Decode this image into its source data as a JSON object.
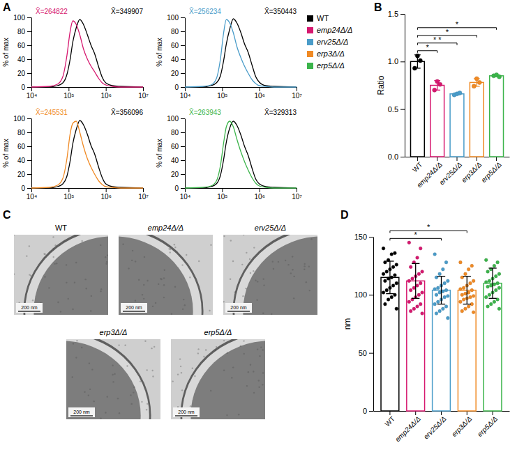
{
  "chart_data": [
    {
      "type": "line",
      "panel": "A",
      "legend": "right",
      "log": "x",
      "ylabel": "% of max",
      "x": [
        10000,
        30000,
        50000,
        70000,
        90000,
        110000,
        130000,
        160000,
        200000,
        250000,
        320000,
        400000,
        500000,
        650000,
        800000,
        1000000,
        1500000,
        2500000,
        10000000
      ],
      "xlim": [
        10000,
        10000000
      ],
      "xticks": [
        {
          "value": 10000,
          "label": "10⁴"
        },
        {
          "value": 100000,
          "label": "10⁵"
        },
        {
          "value": 1000000,
          "label": "10⁶"
        },
        {
          "value": 10000000,
          "label": "10⁷"
        }
      ],
      "ylim": [
        0,
        100
      ],
      "yticks": [
        0,
        20,
        40,
        60,
        80,
        100
      ],
      "series": [
        {
          "name": "emp24Δ/Δ",
          "color": "#d6186f",
          "values": [
            0,
            1,
            4,
            15,
            45,
            80,
            95,
            90,
            75,
            55,
            40,
            30,
            22,
            12,
            6,
            3,
            1,
            0,
            0
          ]
        },
        {
          "name": "WT",
          "color": "#000000",
          "values": [
            0,
            0,
            2,
            6,
            18,
            40,
            65,
            85,
            97,
            90,
            75,
            60,
            48,
            28,
            14,
            6,
            2,
            1,
            0
          ]
        }
      ],
      "annotations": [
        "X̄=264822",
        "X̄=349907"
      ]
    },
    {
      "type": "line",
      "log": "x",
      "ylabel": "% of max",
      "x": [
        10000,
        30000,
        50000,
        70000,
        90000,
        110000,
        130000,
        160000,
        200000,
        250000,
        320000,
        400000,
        500000,
        650000,
        800000,
        1000000,
        1500000,
        2500000,
        10000000
      ],
      "xlim": [
        10000,
        10000000
      ],
      "xticks": [
        {
          "value": 10000,
          "label": "10⁴"
        },
        {
          "value": 100000,
          "label": "10⁵"
        },
        {
          "value": 1000000,
          "label": "10⁶"
        },
        {
          "value": 10000000,
          "label": "10⁷"
        }
      ],
      "ylim": [
        0,
        100
      ],
      "yticks": [
        0,
        20,
        40,
        60,
        80,
        100
      ],
      "series": [
        {
          "name": "erv25Δ/Δ",
          "color": "#4a9cc9",
          "values": [
            0,
            1,
            3,
            12,
            40,
            78,
            97,
            92,
            78,
            58,
            42,
            30,
            20,
            10,
            5,
            2,
            1,
            0,
            0
          ]
        },
        {
          "name": "WT",
          "color": "#000000",
          "values": [
            0,
            0,
            2,
            6,
            16,
            38,
            62,
            83,
            98,
            92,
            78,
            62,
            50,
            30,
            15,
            7,
            2,
            1,
            0
          ]
        }
      ],
      "annotations": [
        "X̄=256234",
        "X̄=350443"
      ]
    },
    {
      "type": "line",
      "log": "x",
      "ylabel": "% of max",
      "x": [
        10000,
        30000,
        50000,
        70000,
        90000,
        110000,
        130000,
        160000,
        200000,
        250000,
        320000,
        400000,
        500000,
        650000,
        800000,
        1000000,
        1500000,
        2500000,
        10000000
      ],
      "xlim": [
        10000,
        10000000
      ],
      "xticks": [
        {
          "value": 10000,
          "label": "10⁴"
        },
        {
          "value": 100000,
          "label": "10⁵"
        },
        {
          "value": 1000000,
          "label": "10⁶"
        },
        {
          "value": 10000000,
          "label": "10⁷"
        }
      ],
      "ylim": [
        0,
        100
      ],
      "yticks": [
        0,
        20,
        40,
        60,
        80,
        100
      ],
      "series": [
        {
          "name": "erp3Δ/Δ",
          "color": "#f08a24",
          "values": [
            0,
            1,
            4,
            14,
            42,
            78,
            93,
            96,
            80,
            60,
            42,
            30,
            20,
            10,
            5,
            2,
            1,
            0,
            0
          ]
        },
        {
          "name": "WT",
          "color": "#000000",
          "values": [
            0,
            0,
            2,
            6,
            17,
            39,
            64,
            84,
            97,
            91,
            77,
            61,
            49,
            29,
            15,
            6,
            2,
            1,
            0
          ]
        }
      ],
      "annotations": [
        "X̄=245531",
        "X̄=356096"
      ]
    },
    {
      "type": "line",
      "log": "x",
      "ylabel": "% of max",
      "x": [
        10000,
        30000,
        50000,
        70000,
        90000,
        110000,
        130000,
        160000,
        200000,
        250000,
        320000,
        400000,
        500000,
        650000,
        800000,
        1000000,
        1500000,
        2500000,
        10000000
      ],
      "xlim": [
        10000,
        10000000
      ],
      "xticks": [
        {
          "value": 10000,
          "label": "10⁴"
        },
        {
          "value": 100000,
          "label": "10⁵"
        },
        {
          "value": 1000000,
          "label": "10⁶"
        },
        {
          "value": 10000000,
          "label": "10⁷"
        }
      ],
      "ylim": [
        0,
        100
      ],
      "yticks": [
        0,
        20,
        40,
        60,
        80,
        100
      ],
      "series": [
        {
          "name": "erp5Δ/Δ",
          "color": "#3cb44b",
          "values": [
            0,
            1,
            3,
            10,
            32,
            65,
            88,
            96,
            88,
            70,
            52,
            38,
            26,
            14,
            7,
            3,
            1,
            0,
            0
          ]
        },
        {
          "name": "WT",
          "color": "#000000",
          "values": [
            0,
            0,
            2,
            6,
            18,
            41,
            66,
            86,
            96,
            90,
            76,
            60,
            47,
            27,
            13,
            6,
            2,
            1,
            0
          ]
        }
      ],
      "annotations": [
        "X̄=263943",
        "X̄=329313"
      ]
    },
    {
      "type": "bar",
      "panel": "B",
      "ylabel": "Ratio",
      "categories": [
        "WT",
        "emp24Δ/Δ",
        "erv25Δ/Δ",
        "erp3Δ/Δ",
        "erp5Δ/Δ"
      ],
      "values": [
        1.0,
        0.75,
        0.66,
        0.78,
        0.85
      ],
      "errors": [
        0.07,
        0.05,
        0.01,
        0.04,
        0.01
      ],
      "points": [
        [
          0.93,
          1.06,
          1.01
        ],
        [
          0.7,
          0.79,
          0.76
        ],
        [
          0.65,
          0.66,
          0.67
        ],
        [
          0.74,
          0.82,
          0.78
        ],
        [
          0.85,
          0.86,
          0.84
        ]
      ],
      "colors": [
        "#000000",
        "#d6186f",
        "#4a9cc9",
        "#f08a24",
        "#3cb44b"
      ],
      "ylim": [
        0,
        1.5
      ],
      "yticks": [
        {
          "value": 0,
          "label": "0.0"
        },
        0.5,
        {
          "value": 1,
          "label": "1.0"
        },
        1.5
      ],
      "significance": [
        {
          "pair": [
            0,
            1
          ],
          "label": "*"
        },
        {
          "pair": [
            0,
            2
          ],
          "label": "* *"
        },
        {
          "pair": [
            0,
            3
          ],
          "label": "*"
        },
        {
          "pair": [
            0,
            4
          ],
          "label": "*"
        }
      ]
    },
    {
      "type": "bar",
      "panel": "D",
      "ylabel": "nm",
      "categories": [
        "WT",
        "emp24Δ/Δ",
        "erv25Δ/Δ",
        "erp3Δ/Δ",
        "erp5Δ/Δ"
      ],
      "values": [
        115,
        112,
        104,
        104,
        110
      ],
      "errors": [
        14,
        15,
        12,
        12,
        13
      ],
      "points": [
        [
          140,
          136,
          135,
          130,
          128,
          126,
          124,
          122,
          120,
          118,
          117,
          115,
          114,
          112,
          110,
          108,
          106,
          104,
          102,
          100,
          98,
          96,
          92,
          88
        ],
        [
          145,
          140,
          132,
          128,
          124,
          120,
          118,
          116,
          114,
          112,
          110,
          108,
          106,
          104,
          102,
          100,
          98,
          96,
          94,
          92,
          90,
          88,
          86,
          84
        ],
        [
          135,
          128,
          122,
          118,
          115,
          112,
          110,
          108,
          106,
          105,
          104,
          103,
          102,
          100,
          99,
          98,
          96,
          94,
          92,
          90,
          88,
          86,
          84,
          80
        ],
        [
          128,
          125,
          122,
          118,
          115,
          112,
          110,
          108,
          106,
          105,
          104,
          102,
          101,
          100,
          99,
          98,
          97,
          96,
          94,
          92,
          90,
          88,
          86,
          85
        ],
        [
          130,
          128,
          125,
          122,
          120,
          118,
          116,
          114,
          112,
          111,
          110,
          109,
          108,
          107,
          106,
          104,
          102,
          100,
          98,
          96,
          94,
          92,
          90,
          88
        ]
      ],
      "colors": [
        "#000000",
        "#d6186f",
        "#4a9cc9",
        "#f08a24",
        "#3cb44b"
      ],
      "ylim": [
        0,
        150
      ],
      "yticks": [
        0,
        50,
        100,
        150
      ],
      "significance": [
        {
          "pair": [
            0,
            2
          ],
          "label": "*"
        },
        {
          "pair": [
            0,
            3
          ],
          "label": "*"
        }
      ]
    }
  ],
  "micrographs": {
    "panel": "C",
    "images": [
      {
        "title": "WT",
        "scale_bar": "200 nm"
      },
      {
        "title": "emp24Δ/Δ",
        "scale_bar": "200 nm"
      },
      {
        "title": "erv25Δ/Δ",
        "scale_bar": "200 nm"
      },
      {
        "title": "erp3Δ/Δ",
        "scale_bar": "200 nm"
      },
      {
        "title": "erp5Δ/Δ",
        "scale_bar": "200 nm"
      }
    ]
  }
}
